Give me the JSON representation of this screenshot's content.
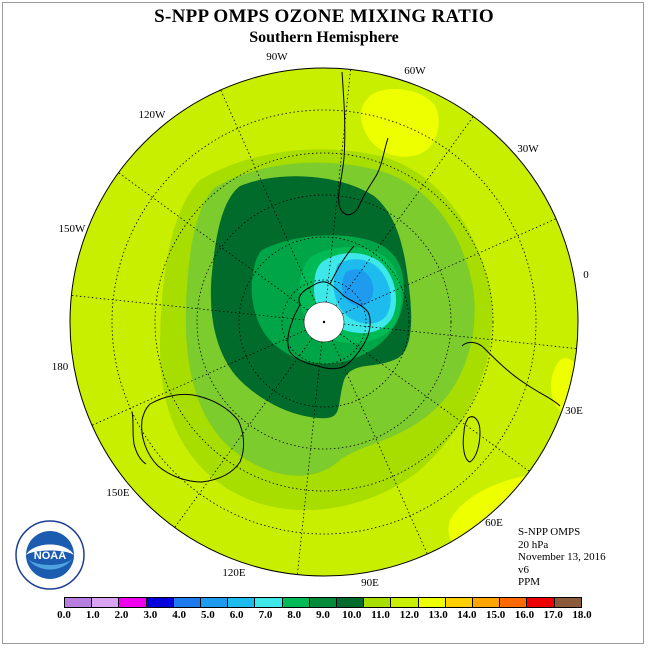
{
  "title": "S-NPP OMPS OZONE MIXING RATIO",
  "subtitle": "Southern Hemisphere",
  "longitude_labels": [
    "90W",
    "60W",
    "30W",
    "0",
    "30E",
    "60E",
    "90E",
    "120E",
    "150E",
    "180",
    "150W",
    "120W"
  ],
  "info": {
    "instrument": "S-NPP OMPS",
    "level": "20 hPa",
    "date": "November 13, 2016",
    "version": "v6",
    "units": "PPM"
  },
  "colorbar": {
    "labels": [
      "0.0",
      "1.0",
      "2.0",
      "3.0",
      "4.0",
      "5.0",
      "6.0",
      "7.0",
      "8.0",
      "9.0",
      "10.0",
      "11.0",
      "12.0",
      "13.0",
      "14.0",
      "15.0",
      "16.0",
      "17.0",
      "18.0"
    ],
    "colors": [
      "#b77ee0",
      "#d8a3f0",
      "#ee00ee",
      "#0000dd",
      "#1e7bef",
      "#1e9bef",
      "#1ebbef",
      "#3ee8e8",
      "#00bb55",
      "#008a3a",
      "#006b2a",
      "#a8dd00",
      "#c8ee00",
      "#eeff00",
      "#ffd000",
      "#ffa500",
      "#ff6a00",
      "#ee0000",
      "#8a5a3a"
    ]
  },
  "logo": {
    "text": "NOAA"
  },
  "map_colors": {
    "background": "#c8ee00",
    "ring_11": "#a8dd00",
    "ring_10": "#7ccc2e",
    "ring_9": "#00a548",
    "ring_8": "#00bb55",
    "core_dark": "#006b2a",
    "cyan": "#3ee8e8",
    "sky": "#1ebbef",
    "blue": "#1e9bef",
    "high_yellow": "#eeff00"
  }
}
